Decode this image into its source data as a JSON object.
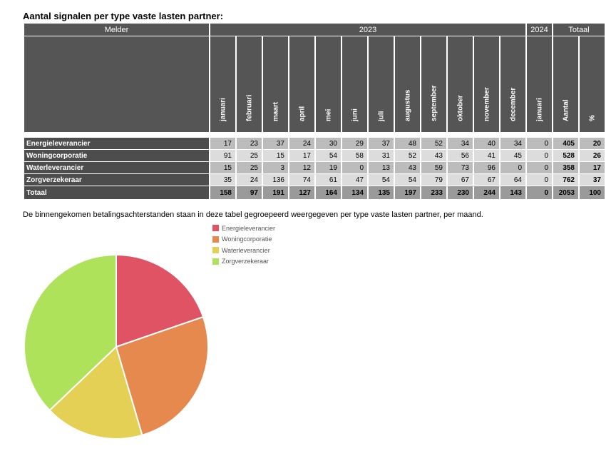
{
  "title": "Aantal signalen per type vaste lasten partner:",
  "description": "De binnengekomen betalingsachterstanden staan in deze tabel gegroepeerd weergegeven per type vaste lasten partner, per maand.",
  "table": {
    "header_melder": "Melder",
    "header_2023": "2023",
    "header_2024": "2024",
    "header_totaal": "Totaal",
    "months_2023": [
      "januari",
      "februari",
      "maart",
      "april",
      "mei",
      "juni",
      "juli",
      "augustus",
      "september",
      "oktober",
      "november",
      "december"
    ],
    "months_2024": [
      "januari"
    ],
    "col_aantal": "Aantal",
    "col_pct": "%",
    "rows": [
      {
        "label": "Energieleverancier",
        "values": [
          "17",
          "23",
          "37",
          "24",
          "30",
          "29",
          "37",
          "48",
          "52",
          "34",
          "40",
          "34"
        ],
        "y2024": [
          "0"
        ],
        "aantal": "405",
        "pct": "20"
      },
      {
        "label": "Woningcorporatie",
        "values": [
          "91",
          "25",
          "15",
          "17",
          "54",
          "58",
          "31",
          "52",
          "43",
          "56",
          "41",
          "45"
        ],
        "y2024": [
          "0"
        ],
        "aantal": "528",
        "pct": "26"
      },
      {
        "label": "Waterleverancier",
        "values": [
          "15",
          "25",
          "3",
          "12",
          "19",
          "0",
          "13",
          "43",
          "59",
          "73",
          "96",
          "0"
        ],
        "y2024": [
          "0"
        ],
        "aantal": "358",
        "pct": "17"
      },
      {
        "label": "Zorgverzekeraar",
        "values": [
          "35",
          "24",
          "136",
          "74",
          "61",
          "47",
          "54",
          "54",
          "79",
          "67",
          "67",
          "64"
        ],
        "y2024": [
          "0"
        ],
        "aantal": "762",
        "pct": "37"
      }
    ],
    "total": {
      "label": "Totaal",
      "values": [
        "158",
        "97",
        "191",
        "127",
        "164",
        "134",
        "135",
        "197",
        "233",
        "230",
        "244",
        "143"
      ],
      "y2024": [
        "0"
      ],
      "aantal": "2053",
      "pct": "100"
    }
  },
  "chart_data": {
    "type": "pie",
    "categories": [
      "Energieleverancier",
      "Woningcorporatie",
      "Waterleverancier",
      "Zorgverzekeraar"
    ],
    "values": [
      405,
      528,
      358,
      762
    ],
    "colors": [
      "#e05365",
      "#e5894f",
      "#e3d054",
      "#aee25a"
    ],
    "legend_position": "top-right"
  }
}
